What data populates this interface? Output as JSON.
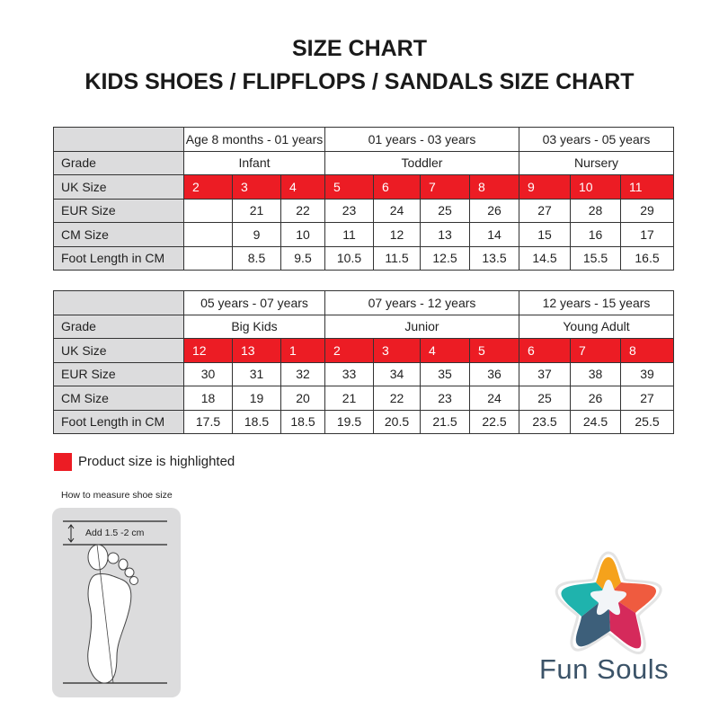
{
  "header": {
    "title": "SIZE CHART",
    "subtitle": "KIDS SHOES / FLIPFLOPS / SANDALS SIZE CHART"
  },
  "tables": [
    {
      "groups": [
        {
          "age": "Age 8 months - 01 years",
          "grade": "Infant",
          "span": 3
        },
        {
          "age": "01 years - 03 years",
          "grade": "Toddler",
          "span": 4
        },
        {
          "age": "03 years - 05 years",
          "grade": "Nursery",
          "span": 3
        }
      ],
      "row_labels": {
        "grade": "Grade",
        "uk": "UK Size",
        "eur": "EUR Size",
        "cm": "CM Size",
        "foot": "Foot Length in CM"
      },
      "uk": [
        "2",
        "3",
        "4",
        "5",
        "6",
        "7",
        "8",
        "9",
        "10",
        "11"
      ],
      "eur": [
        "",
        "21",
        "22",
        "23",
        "24",
        "25",
        "26",
        "27",
        "28",
        "29"
      ],
      "cm": [
        "",
        "9",
        "10",
        "11",
        "12",
        "13",
        "14",
        "15",
        "16",
        "17"
      ],
      "foot": [
        "",
        "8.5",
        "9.5",
        "10.5",
        "11.5",
        "12.5",
        "13.5",
        "14.5",
        "15.5",
        "16.5"
      ]
    },
    {
      "groups": [
        {
          "age": "05 years - 07 years",
          "grade": "Big Kids",
          "span": 3
        },
        {
          "age": "07 years - 12 years",
          "grade": "Junior",
          "span": 4
        },
        {
          "age": "12 years - 15 years",
          "grade": "Young Adult",
          "span": 3
        }
      ],
      "row_labels": {
        "grade": "Grade",
        "uk": "UK Size",
        "eur": "EUR Size",
        "cm": "CM Size",
        "foot": "Foot Length in CM"
      },
      "uk": [
        "12",
        "13",
        "1",
        "2",
        "3",
        "4",
        "5",
        "6",
        "7",
        "8"
      ],
      "eur": [
        "30",
        "31",
        "32",
        "33",
        "34",
        "35",
        "36",
        "37",
        "38",
        "39"
      ],
      "cm": [
        "18",
        "19",
        "20",
        "21",
        "22",
        "23",
        "24",
        "25",
        "26",
        "27"
      ],
      "foot": [
        "17.5",
        "18.5",
        "18.5",
        "19.5",
        "20.5",
        "21.5",
        "22.5",
        "23.5",
        "24.5",
        "25.5"
      ]
    }
  ],
  "legend": {
    "text": "Product size is highlighted",
    "color": "#ec1c24"
  },
  "measure": {
    "title": "How to measure shoe size",
    "note": "Add 1.5 -2 cm"
  },
  "brand": {
    "name": "Fun Souls",
    "colors": [
      "#f5a21b",
      "#ef5b3f",
      "#d52a5b",
      "#3d5f7a",
      "#1fb3ad"
    ]
  }
}
